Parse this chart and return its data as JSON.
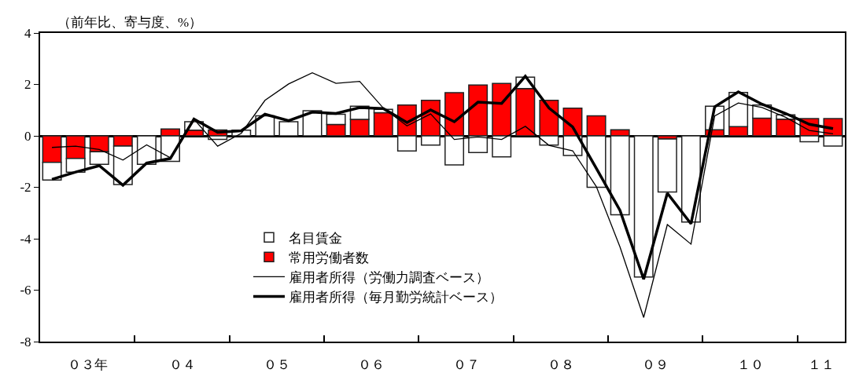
{
  "chart_data": {
    "type": "bar",
    "stacked": true,
    "ylabel": "（前年比、寄与度、%）",
    "categories": [
      null,
      null,
      null,
      null,
      null,
      null,
      null,
      null,
      null,
      null,
      null,
      null,
      null,
      null,
      null,
      null,
      null,
      null,
      null,
      null,
      null,
      null,
      null,
      null,
      null,
      null,
      null,
      null,
      null,
      null,
      null,
      null,
      null,
      null
    ],
    "annotations": [
      "０３年",
      "０４",
      "０５",
      "０６",
      "０７",
      "０８",
      "０９",
      "１０",
      "１１"
    ],
    "ylim": [
      -8,
      4
    ],
    "yticks": [
      -8,
      -6,
      -4,
      -2,
      0,
      2,
      4
    ],
    "legend": "bottom left",
    "series": [
      {
        "name": "常用労働者数",
        "color": "#ff0000",
        "values": [
          -1.03,
          -0.88,
          -0.62,
          -0.4,
          null,
          0.27,
          0.22,
          0.23,
          null,
          null,
          null,
          null,
          0.44,
          0.64,
          0.9,
          1.2,
          1.38,
          1.68,
          1.98,
          2.04,
          1.84,
          1.38,
          1.08,
          0.78,
          0.24,
          null,
          -0.12,
          null,
          0.24,
          0.36,
          0.69,
          0.65,
          0.67,
          0.67
        ]
      },
      {
        "name": "名目賃金",
        "color": "#ffffff",
        "values": [
          -0.69,
          -0.53,
          -0.49,
          -1.49,
          -1.11,
          -0.99,
          0.33,
          -0.14,
          0.22,
          0.78,
          0.55,
          0.98,
          0.4,
          0.51,
          0.13,
          -0.59,
          -0.36,
          -1.13,
          -0.65,
          -0.82,
          0.44,
          -0.36,
          -0.76,
          -2.0,
          -3.07,
          -5.49,
          -2.06,
          -3.35,
          0.91,
          1.33,
          0.51,
          0.17,
          -0.23,
          -0.4
        ]
      },
      {
        "name": "雇用者所得（労働力調査ベース）",
        "type": "line",
        "color": "#000000",
        "line_style": "solid",
        "values": [
          -0.45,
          -0.4,
          -0.53,
          -0.94,
          -0.35,
          -0.85,
          0.65,
          -0.4,
          0.1,
          1.38,
          2.02,
          2.45,
          2.04,
          2.12,
          1.08,
          0.39,
          0.85,
          -0.14,
          -0.04,
          -0.14,
          0.37,
          -0.37,
          -0.58,
          -1.97,
          -4.32,
          -7.06,
          -3.45,
          -4.21,
          0.77,
          1.28,
          1.1,
          0.72,
          0.21,
          0.08
        ]
      },
      {
        "name": "雇用者所得（毎月勤労統計ベース）",
        "type": "line",
        "color": "#000000",
        "line_style": "solid",
        "values": [
          -1.69,
          -1.41,
          -1.16,
          -1.92,
          -1.06,
          -0.88,
          0.65,
          0.14,
          0.2,
          0.84,
          0.59,
          0.92,
          0.87,
          1.1,
          1.06,
          0.52,
          1.01,
          0.55,
          1.31,
          1.26,
          2.32,
          1.08,
          0.35,
          -1.26,
          -2.9,
          -5.57,
          -2.23,
          -3.42,
          1.13,
          1.71,
          1.23,
          0.87,
          0.45,
          0.28
        ]
      }
    ]
  }
}
